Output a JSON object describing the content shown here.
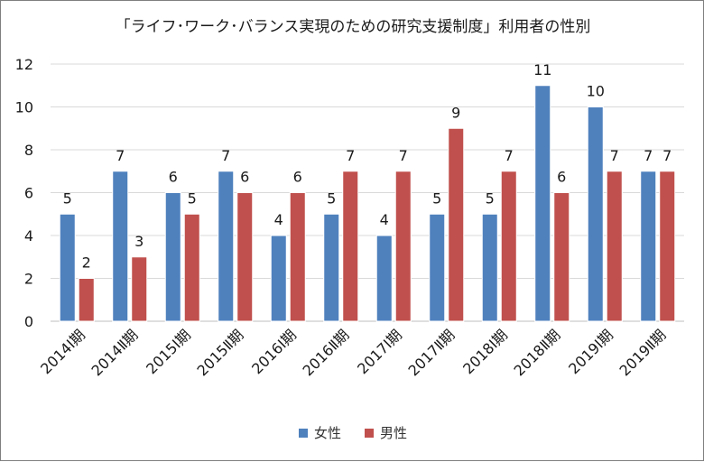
{
  "chart_data": {
    "type": "bar",
    "title": "「ライフ･ワーク･バランス実現のための研究支援制度」利用者の性別",
    "categories": [
      "2014Ⅰ期",
      "2014Ⅱ期",
      "2015Ⅰ期",
      "2015Ⅱ期",
      "2016Ⅰ期",
      "2016Ⅱ期",
      "2017Ⅰ期",
      "2017Ⅱ期",
      "2018Ⅰ期",
      "2018Ⅱ期",
      "2019Ⅰ期",
      "2019Ⅱ期"
    ],
    "series": [
      {
        "name": "女性",
        "color": "#4f81bd",
        "values": [
          5,
          7,
          6,
          7,
          4,
          5,
          4,
          5,
          5,
          11,
          10,
          7
        ]
      },
      {
        "name": "男性",
        "color": "#c0504d",
        "values": [
          2,
          3,
          5,
          6,
          6,
          7,
          7,
          9,
          7,
          6,
          7,
          7
        ]
      }
    ],
    "ylim": [
      0,
      12
    ],
    "yticks": [
      0,
      2,
      4,
      6,
      8,
      10,
      12
    ],
    "grid": true,
    "data_labels": true,
    "legend_position": "bottom"
  }
}
